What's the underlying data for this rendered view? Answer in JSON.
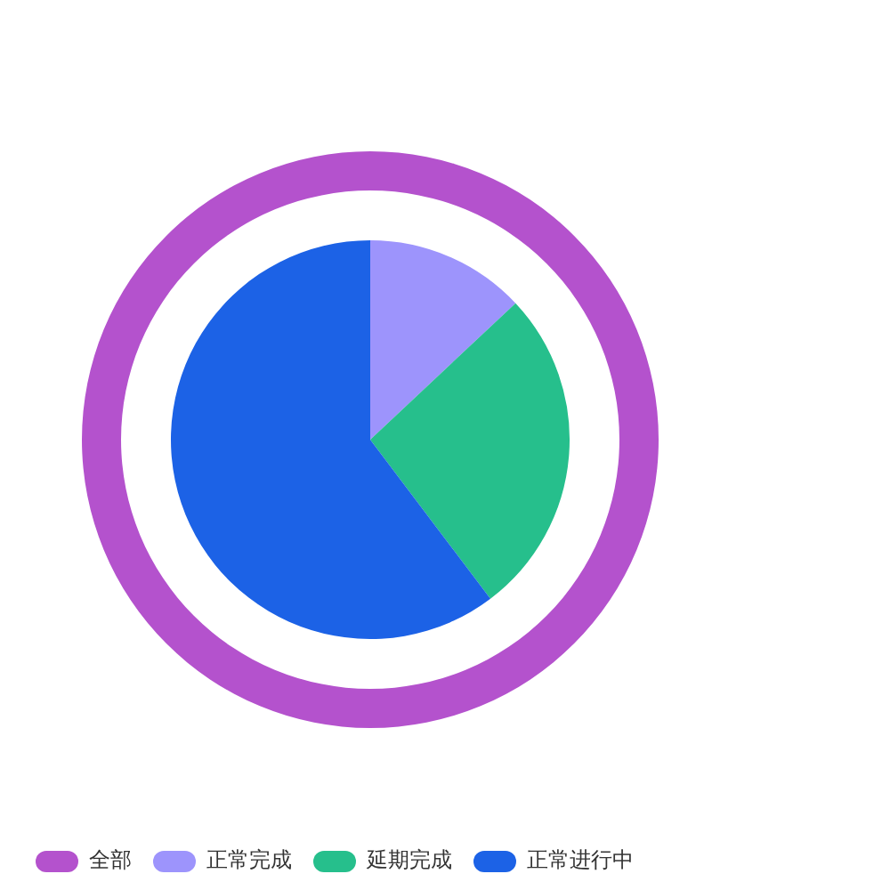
{
  "chart_data": {
    "type": "donut",
    "categories": [
      "全部",
      "正常完成",
      "延期完成",
      "正常进行中"
    ],
    "colors": [
      "#b452cd",
      "#9d94fc",
      "#26bf8c",
      "#1c62e6"
    ],
    "series": [
      {
        "type": "donut",
        "values": [
          100,
          null,
          null,
          null
        ]
      },
      {
        "type": "pie",
        "values": [
          null,
          13,
          26.7,
          60.3
        ]
      }
    ],
    "legend": "bottom left"
  }
}
